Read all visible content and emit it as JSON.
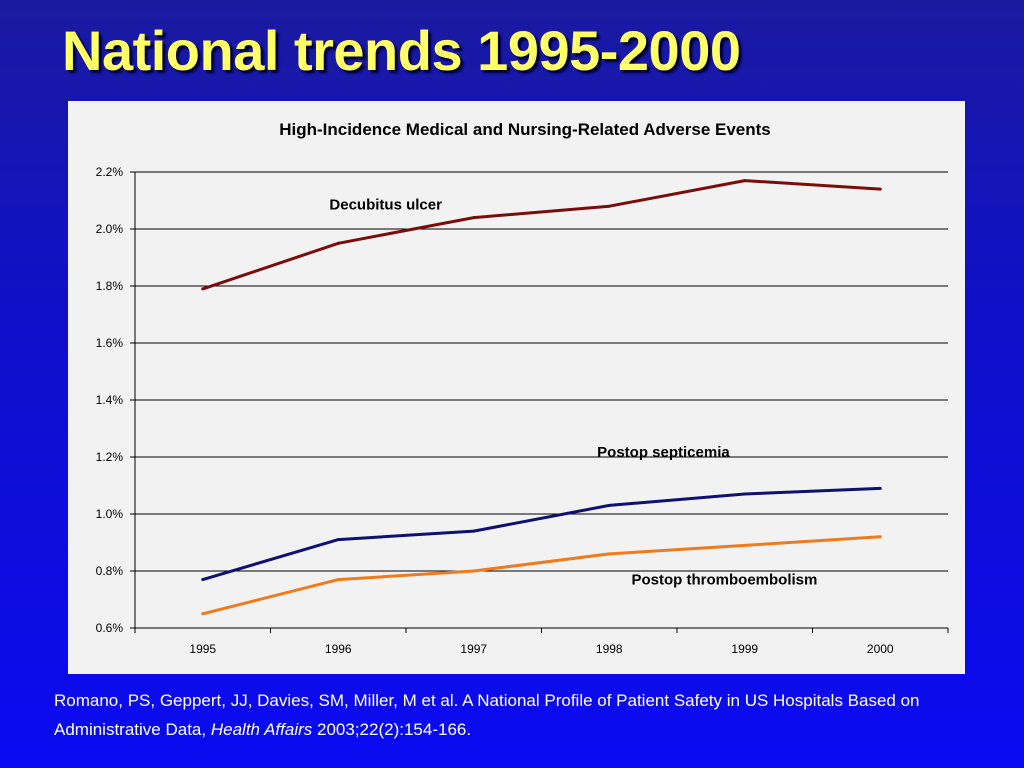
{
  "slide": {
    "title": "National trends 1995-2000"
  },
  "citation": {
    "part1": "Romano, PS, Geppert, JJ, Davies, SM, Miller, M et al. A National Profile of Patient Safety in US Hospitals Based on Administrative Data,",
    "journal": "Health Affairs",
    "part2": "2003;22(2):154-166."
  },
  "colors": {
    "title": "#ffff66",
    "chart_background": "#f2f2f2",
    "decubitus_ulcer": "#7a0c0c",
    "postop_septicemia": "#101070",
    "postop_thromboembolism": "#f07a1e"
  },
  "chart_data": {
    "type": "line",
    "title": "High-Incidence Medical and Nursing-Related Adverse Events",
    "xlabel": "",
    "ylabel": "",
    "x": [
      "1995",
      "1996",
      "1997",
      "1998",
      "1999",
      "2000"
    ],
    "ylim": [
      0.6,
      2.2
    ],
    "yticks": [
      "0.6%",
      "0.8%",
      "1.0%",
      "1.2%",
      "1.4%",
      "1.6%",
      "1.8%",
      "2.0%",
      "2.2%"
    ],
    "grid": "horizontal",
    "series": [
      {
        "name": "Decubitus ulcer",
        "values": [
          1.79,
          1.95,
          2.04,
          2.08,
          2.17,
          2.14
        ]
      },
      {
        "name": "Postop septicemia",
        "values": [
          0.77,
          0.91,
          0.94,
          1.03,
          1.07,
          1.09
        ]
      },
      {
        "name": "Postop thromboembolism",
        "values": [
          0.65,
          0.77,
          0.8,
          0.86,
          0.89,
          0.92
        ]
      }
    ]
  }
}
